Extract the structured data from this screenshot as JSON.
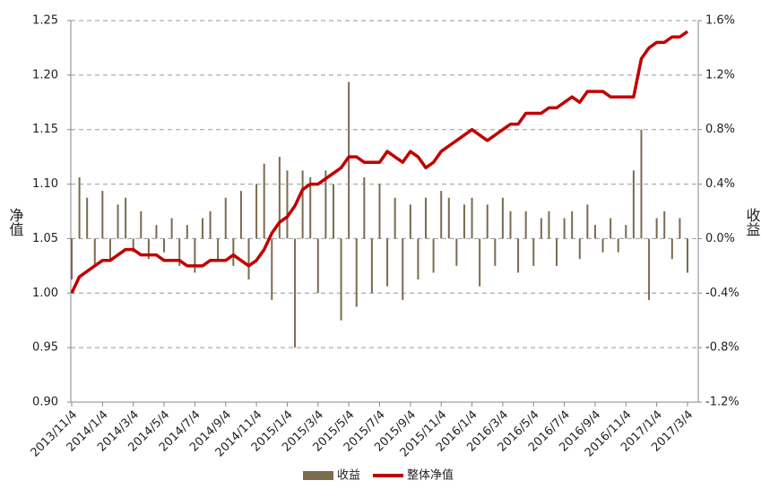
{
  "chart_data": {
    "type": "bar-line",
    "y_label": "净值",
    "y2_label": "收益",
    "categories": [
      "2013/11/4",
      null,
      null,
      null,
      "2014/1/4",
      null,
      null,
      null,
      "2014/3/4",
      null,
      null,
      null,
      "2014/5/4",
      null,
      null,
      null,
      "2014/7/4",
      null,
      null,
      null,
      "2014/9/4",
      null,
      null,
      null,
      "2014/11/4",
      null,
      null,
      null,
      "2015/1/4",
      null,
      null,
      null,
      "2015/3/4",
      null,
      null,
      null,
      "2015/5/4",
      null,
      null,
      null,
      "2015/7/4",
      null,
      null,
      null,
      "2015/9/4",
      null,
      null,
      null,
      "2015/11/4",
      null,
      null,
      null,
      "2016/1/4",
      null,
      null,
      null,
      "2016/3/4",
      null,
      null,
      null,
      "2016/5/4",
      null,
      null,
      null,
      "2016/7/4",
      null,
      null,
      null,
      "2016/9/4",
      null,
      null,
      null,
      "2016/11/4",
      null,
      null,
      null,
      "2017/1/4",
      null,
      null,
      null,
      "2017/3/4"
    ],
    "series": [
      {
        "name": "收益",
        "type": "bar",
        "axis": "y2",
        "color": "#7b6b4f",
        "values": [
          -0.3,
          0.45,
          0.3,
          -0.2,
          0.35,
          -0.15,
          0.25,
          0.3,
          -0.1,
          0.2,
          -0.15,
          0.1,
          -0.1,
          0.15,
          -0.2,
          0.1,
          -0.25,
          0.15,
          0.2,
          -0.15,
          0.3,
          -0.2,
          0.35,
          -0.3,
          0.4,
          0.55,
          -0.45,
          0.6,
          0.5,
          -0.8,
          0.5,
          0.45,
          -0.4,
          0.5,
          0.4,
          -0.6,
          1.15,
          -0.5,
          0.45,
          -0.4,
          0.4,
          -0.35,
          0.3,
          -0.45,
          0.25,
          -0.3,
          0.3,
          -0.25,
          0.35,
          0.3,
          -0.2,
          0.25,
          0.3,
          -0.35,
          0.25,
          -0.2,
          0.3,
          0.2,
          -0.25,
          0.2,
          -0.2,
          0.15,
          0.2,
          -0.2,
          0.15,
          0.2,
          -0.15,
          0.25,
          0.1,
          -0.1,
          0.15,
          -0.1,
          0.1,
          0.5,
          0.8,
          -0.45,
          0.15,
          0.2,
          -0.15,
          0.15,
          -0.25
        ]
      },
      {
        "name": "整体净值",
        "type": "line",
        "color": "#c00000",
        "values": [
          1.0,
          1.015,
          1.02,
          1.025,
          1.03,
          1.03,
          1.035,
          1.04,
          1.04,
          1.035,
          1.035,
          1.035,
          1.03,
          1.03,
          1.03,
          1.025,
          1.025,
          1.025,
          1.03,
          1.03,
          1.03,
          1.035,
          1.03,
          1.025,
          1.03,
          1.04,
          1.055,
          1.065,
          1.07,
          1.08,
          1.095,
          1.1,
          1.1,
          1.105,
          1.11,
          1.115,
          1.125,
          1.125,
          1.12,
          1.12,
          1.12,
          1.13,
          1.125,
          1.12,
          1.13,
          1.125,
          1.115,
          1.12,
          1.13,
          1.135,
          1.14,
          1.145,
          1.15,
          1.145,
          1.14,
          1.145,
          1.15,
          1.155,
          1.155,
          1.165,
          1.165,
          1.165,
          1.17,
          1.17,
          1.175,
          1.18,
          1.175,
          1.185,
          1.185,
          1.185,
          1.18,
          1.18,
          1.18,
          1.18,
          1.215,
          1.225,
          1.23,
          1.23,
          1.235,
          1.235,
          1.24
        ]
      }
    ],
    "ylim": [
      0.9,
      1.25
    ],
    "yticks": [
      {
        "value": 0.9,
        "label": "0.90"
      },
      0.95,
      {
        "value": 1.0,
        "label": "1.00"
      },
      1.05,
      {
        "value": 1.1,
        "label": "1.10"
      },
      1.15,
      {
        "value": 1.2,
        "label": "1.20"
      },
      1.25
    ],
    "y2lim": [
      -1.2,
      1.6
    ],
    "y2ticks": [
      {
        "value": -1.2,
        "label": "-1.2%"
      },
      {
        "value": -0.8,
        "label": "-0.8%"
      },
      {
        "value": -0.4,
        "label": "-0.4%"
      },
      {
        "value": 0,
        "label": "0.0%"
      },
      {
        "value": 0.4,
        "label": "0.4%"
      },
      {
        "value": 0.8,
        "label": "0.8%"
      },
      {
        "value": 1.2,
        "label": "1.2%"
      },
      {
        "value": 1.6,
        "label": "1.6%"
      }
    ],
    "grid": true,
    "legend": "bottom"
  }
}
